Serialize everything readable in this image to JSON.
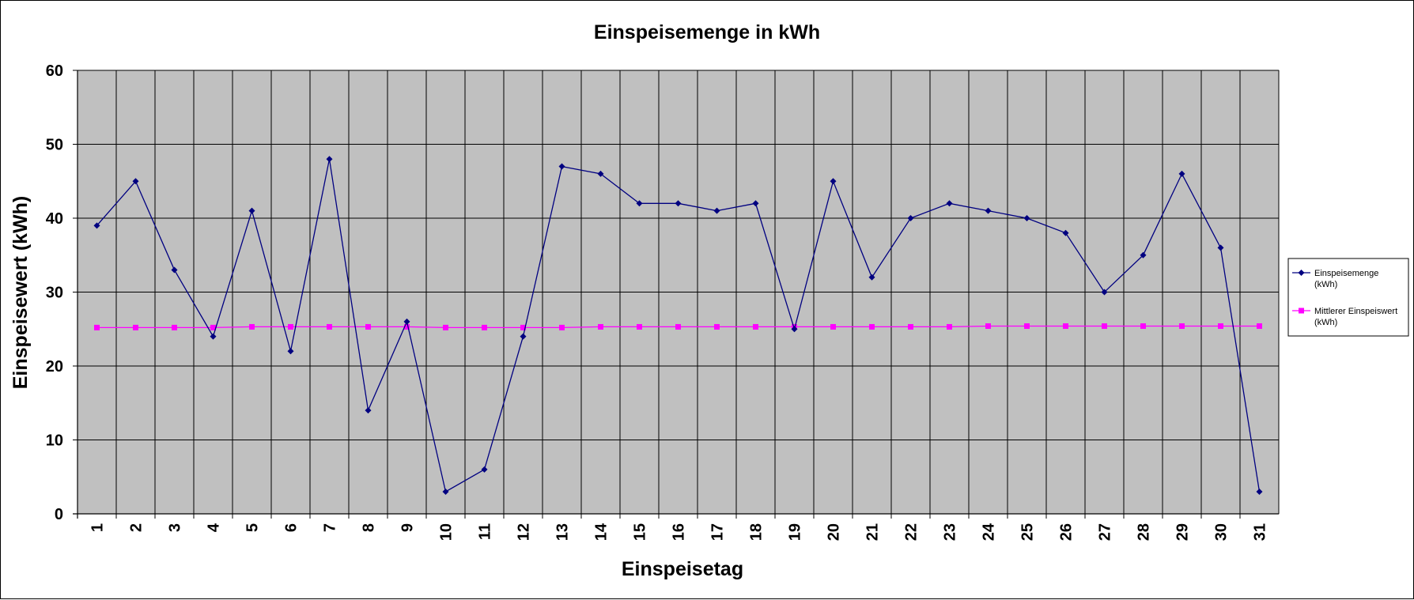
{
  "chart_data": {
    "type": "line",
    "title": "Einspeisemenge in kWh",
    "xlabel": "Einspeisetag",
    "ylabel": "Einspeisewert  (kWh)",
    "categories": [
      "1",
      "2",
      "3",
      "4",
      "5",
      "6",
      "7",
      "8",
      "9",
      "10",
      "11",
      "12",
      "13",
      "14",
      "15",
      "16",
      "17",
      "18",
      "19",
      "20",
      "21",
      "22",
      "23",
      "24",
      "25",
      "26",
      "27",
      "28",
      "29",
      "30",
      "31"
    ],
    "yticks": [
      "0",
      "10",
      "20",
      "30",
      "40",
      "50",
      "60"
    ],
    "ylim": [
      0,
      60
    ],
    "grid": true,
    "plot_background": "#C0C0C0",
    "legend_position": "right",
    "series": [
      {
        "name_lines": [
          "Einspeisemenge",
          "(kWh)"
        ],
        "color": "#000080",
        "marker": "diamond",
        "values": [
          39,
          45,
          33,
          24,
          41,
          22,
          48,
          14,
          26,
          3,
          6,
          24,
          47,
          46,
          42,
          42,
          41,
          42,
          25,
          45,
          32,
          40,
          42,
          41,
          40,
          38,
          30,
          35,
          46,
          36,
          3
        ]
      },
      {
        "name_lines": [
          "Mittlerer Einspeiswert",
          "(kWh)"
        ],
        "color": "#FF00FF",
        "marker": "square",
        "values": [
          25.2,
          25.2,
          25.2,
          25.2,
          25.3,
          25.3,
          25.3,
          25.3,
          25.3,
          25.2,
          25.2,
          25.2,
          25.2,
          25.3,
          25.3,
          25.3,
          25.3,
          25.3,
          25.3,
          25.3,
          25.3,
          25.3,
          25.3,
          25.4,
          25.4,
          25.4,
          25.4,
          25.4,
          25.4,
          25.4,
          25.4
        ]
      }
    ]
  }
}
